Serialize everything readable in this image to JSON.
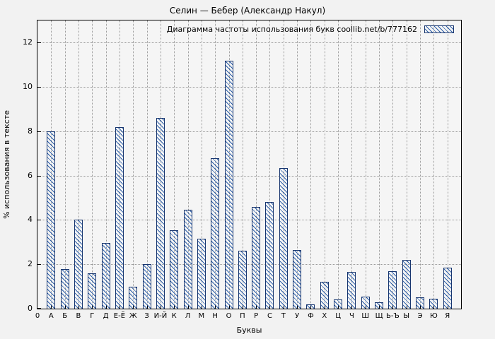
{
  "title": "Селин — Бебер (Александр Накул)",
  "legend": "Диаграмма частоты использования букв coollib.net/b/777162",
  "colors": {
    "background": "#f2f2f2",
    "plot_background": "#f5f5f5",
    "bar_fill": "#2e5fa8",
    "bar_border": "#17356e",
    "grid": "#9a9a9a",
    "axis": "#000000"
  },
  "chart_data": {
    "type": "bar",
    "title": "Селин — Бебер (Александр Накул)",
    "legend": "Диаграмма частоты использования букв coollib.net/b/777162",
    "legend_position": "top-right",
    "xlabel": "Буквы",
    "ylabel": "% использования в тексте",
    "ylim": [
      0,
      13
    ],
    "yticks": [
      0,
      2,
      4,
      6,
      8,
      10,
      12
    ],
    "origin_label": "0",
    "grid": true,
    "bar_color": "#2e5fa8",
    "bar_border": "#17356e",
    "categories": [
      "А",
      "Б",
      "В",
      "Г",
      "Д",
      "Е-Ё",
      "Ж",
      "З",
      "И-Й",
      "К",
      "Л",
      "М",
      "Н",
      "О",
      "П",
      "Р",
      "С",
      "Т",
      "У",
      "Ф",
      "Х",
      "Ц",
      "Ч",
      "Ш",
      "Щ",
      "Ь-Ъ",
      "Ы",
      "Э",
      "Ю",
      "Я"
    ],
    "values": [
      8.0,
      1.8,
      4.0,
      1.6,
      2.95,
      8.2,
      1.0,
      2.0,
      8.6,
      3.55,
      4.45,
      3.15,
      6.8,
      11.2,
      2.6,
      4.6,
      4.8,
      6.35,
      2.65,
      0.2,
      1.2,
      0.4,
      1.65,
      0.55,
      0.3,
      1.7,
      2.2,
      0.5,
      0.45,
      1.85
    ]
  }
}
